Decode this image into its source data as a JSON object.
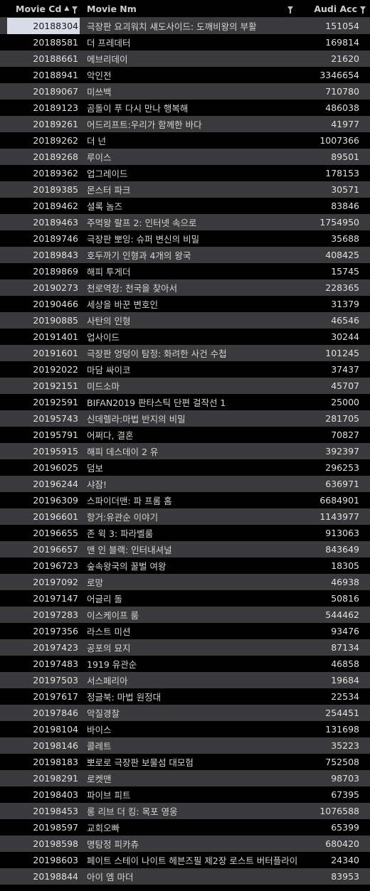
{
  "header": {
    "movie_cd": "Movie Cd",
    "movie_nm": "Movie Nm",
    "audi_acc": "Audi Acc"
  },
  "icons": {
    "sort": "sort-ascending-icon",
    "filter": "filter-icon"
  },
  "colors": {
    "background": "#000000",
    "stripe": "#3a3a3c",
    "selected_cell": "#d7dce6"
  },
  "selected_row": 0,
  "rows": [
    {
      "cd": "20188304",
      "nm": "극장판 요괴워치 섀도사이드: 도깨비왕의 부활",
      "acc": "151054"
    },
    {
      "cd": "20188581",
      "nm": "더 프레데터",
      "acc": "169814"
    },
    {
      "cd": "20188661",
      "nm": "에브리데이",
      "acc": "21620"
    },
    {
      "cd": "20188941",
      "nm": "악인전",
      "acc": "3346654"
    },
    {
      "cd": "20189067",
      "nm": "미쓰백",
      "acc": "710780"
    },
    {
      "cd": "20189123",
      "nm": "곰돌이 푸 다시 만나 행복해",
      "acc": "486038"
    },
    {
      "cd": "20189261",
      "nm": "어드리프트:우리가 함께한 바다",
      "acc": "41977"
    },
    {
      "cd": "20189262",
      "nm": "더 넌",
      "acc": "1007366"
    },
    {
      "cd": "20189268",
      "nm": "루이스",
      "acc": "89501"
    },
    {
      "cd": "20189362",
      "nm": "업그레이드",
      "acc": "178153"
    },
    {
      "cd": "20189385",
      "nm": "몬스터 파크",
      "acc": "30571"
    },
    {
      "cd": "20189462",
      "nm": "셜록 놈즈",
      "acc": "83846"
    },
    {
      "cd": "20189463",
      "nm": "주먹왕 랄프 2: 인터넷 속으로",
      "acc": "1754950"
    },
    {
      "cd": "20189746",
      "nm": "극장판 뽀잉: 슈퍼 변신의 비밀",
      "acc": "35688"
    },
    {
      "cd": "20189843",
      "nm": "호두까기 인형과 4개의 왕국",
      "acc": "408425"
    },
    {
      "cd": "20189869",
      "nm": "해피 투게더",
      "acc": "15745"
    },
    {
      "cd": "20190273",
      "nm": "천로역정: 천국을 찾아서",
      "acc": "228365"
    },
    {
      "cd": "20190466",
      "nm": "세상을 바꾼 변호인",
      "acc": "31379"
    },
    {
      "cd": "20190885",
      "nm": "사탄의 인형",
      "acc": "46546"
    },
    {
      "cd": "20191401",
      "nm": "업사이드",
      "acc": "30244"
    },
    {
      "cd": "20191601",
      "nm": "극장판 엉덩이 탐정: 화려한 사건 수첩",
      "acc": "101245"
    },
    {
      "cd": "20192022",
      "nm": "마담 싸이코",
      "acc": "37437"
    },
    {
      "cd": "20192151",
      "nm": "미드소마",
      "acc": "45707"
    },
    {
      "cd": "20192591",
      "nm": "BIFAN2019 판타스틱 단편 걸작선 1",
      "acc": "25000"
    },
    {
      "cd": "20195743",
      "nm": "신데렐라:마법 반지의 비밀",
      "acc": "281705"
    },
    {
      "cd": "20195791",
      "nm": "어쩌다, 결혼",
      "acc": "70827"
    },
    {
      "cd": "20195915",
      "nm": "해피 데스데이 2 유",
      "acc": "392397"
    },
    {
      "cd": "20196025",
      "nm": "덤보",
      "acc": "296253"
    },
    {
      "cd": "20196244",
      "nm": "샤잠!",
      "acc": "636971"
    },
    {
      "cd": "20196309",
      "nm": "스파이더맨: 파 프롬 홈",
      "acc": "6684901"
    },
    {
      "cd": "20196601",
      "nm": "항거:유관순 이야기",
      "acc": "1143977"
    },
    {
      "cd": "20196655",
      "nm": "존 윅 3: 파라벨룸",
      "acc": "913063"
    },
    {
      "cd": "20196657",
      "nm": "맨 인 블랙: 인터내셔널",
      "acc": "843649"
    },
    {
      "cd": "20196723",
      "nm": "숲속왕국의 꿀벌 여왕",
      "acc": "18305"
    },
    {
      "cd": "20197092",
      "nm": "로망",
      "acc": "46938"
    },
    {
      "cd": "20197147",
      "nm": "어글리 돌",
      "acc": "50816"
    },
    {
      "cd": "20197283",
      "nm": "이스케이프 룸",
      "acc": "544462"
    },
    {
      "cd": "20197356",
      "nm": "라스트 미션",
      "acc": "93476"
    },
    {
      "cd": "20197423",
      "nm": "공포의 묘지",
      "acc": "87134"
    },
    {
      "cd": "20197483",
      "nm": "1919 유관순",
      "acc": "46858"
    },
    {
      "cd": "20197503",
      "nm": "서스페리아",
      "acc": "19684"
    },
    {
      "cd": "20197617",
      "nm": "정글북: 마법 원정대",
      "acc": "22534"
    },
    {
      "cd": "20197846",
      "nm": "악질경찰",
      "acc": "254451"
    },
    {
      "cd": "20198104",
      "nm": "바이스",
      "acc": "131698"
    },
    {
      "cd": "20198146",
      "nm": "콜레트",
      "acc": "35223"
    },
    {
      "cd": "20198183",
      "nm": "뽀로로 극장판 보물섬 대모험",
      "acc": "752508"
    },
    {
      "cd": "20198291",
      "nm": "로켓맨",
      "acc": "98703"
    },
    {
      "cd": "20198403",
      "nm": "파이브 피트",
      "acc": "67395"
    },
    {
      "cd": "20198453",
      "nm": "롱 리브 더 킹: 목포 영웅",
      "acc": "1076588"
    },
    {
      "cd": "20198597",
      "nm": "교회오빠",
      "acc": "65399"
    },
    {
      "cd": "20198598",
      "nm": "명탐정 피카츄",
      "acc": "680420"
    },
    {
      "cd": "20198603",
      "nm": "페이트 스테이 나이트 헤븐즈필 제2장 로스트 버터플라이",
      "acc": "24340"
    },
    {
      "cd": "20198844",
      "nm": "아이 엠 마더",
      "acc": "83953"
    }
  ]
}
